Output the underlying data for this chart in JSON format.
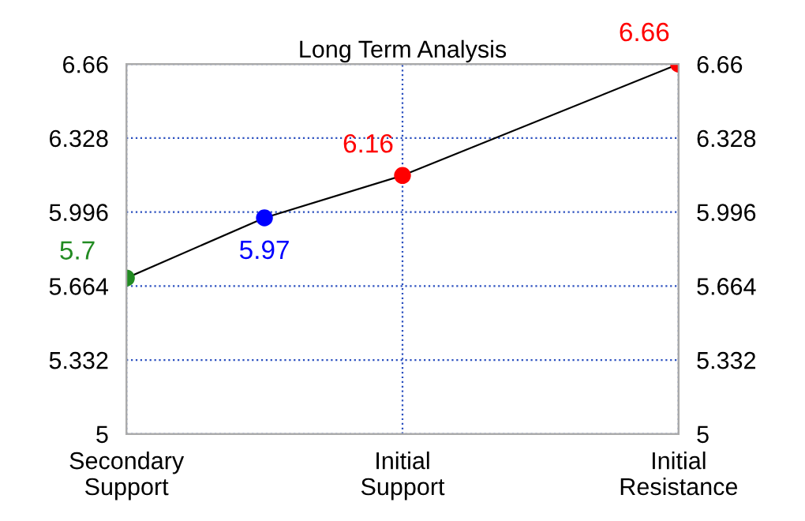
{
  "chart_data": {
    "type": "line",
    "title": "Long Term Analysis",
    "categories": [
      "Secondary\nSupport",
      null,
      "Initial\nSupport",
      null,
      "Initial\nResistance"
    ],
    "series": [
      {
        "color": "#000000",
        "colors": [
          "#228b22",
          "#0000ff",
          "#ff0000",
          null,
          "#ff0000"
        ],
        "values": [
          5.7,
          5.97,
          6.16,
          null,
          6.66
        ],
        "value_labels": [
          "5.7",
          "5.97",
          "6.16",
          null,
          "6.66"
        ]
      }
    ],
    "ylim": [
      5,
      6.66
    ],
    "yticks": [
      5,
      5.332,
      5.664,
      5.996,
      6.328,
      6.66
    ],
    "y2lim": [
      5,
      6.66
    ],
    "y2ticks": [
      5,
      5.332,
      5.664,
      5.996,
      6.328,
      6.66
    ],
    "grid": true,
    "marker": "circle",
    "line_style": "solid"
  }
}
